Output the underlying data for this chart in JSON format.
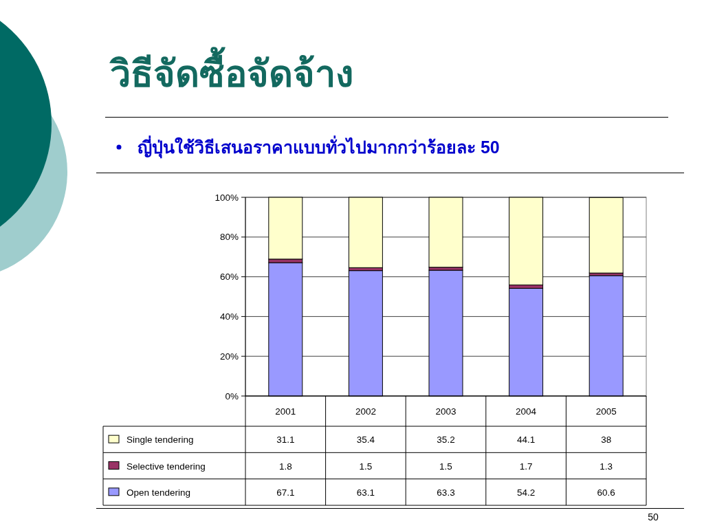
{
  "chart_data": {
    "type": "bar",
    "title": "วิธีจัดซื้อจัดจ้าง",
    "subtitle": "ญี่ปุ่นใช้วิธีเสนอราคาแบบทั่วไปมากกว่าร้อยละ 50",
    "categories": [
      "2001",
      "2002",
      "2003",
      "2004",
      "2005"
    ],
    "series": [
      {
        "name": "Open tendering",
        "color": "#9999ff",
        "values": [
          67.1,
          63.1,
          63.3,
          54.2,
          60.6
        ]
      },
      {
        "name": "Selective tendering",
        "color": "#993366",
        "values": [
          1.8,
          1.5,
          1.5,
          1.7,
          1.3
        ]
      },
      {
        "name": "Single tendering",
        "color": "#ffffcc",
        "values": [
          31.1,
          35.4,
          35.2,
          44.1,
          38
        ]
      }
    ],
    "stacked": true,
    "ylim": [
      0,
      100
    ],
    "yticks": [
      {
        "value": 0,
        "label": "0%"
      },
      {
        "value": 20,
        "label": "20%"
      },
      {
        "value": 40,
        "label": "40%"
      },
      {
        "value": 60,
        "label": "60%"
      },
      {
        "value": 80,
        "label": "80%"
      },
      {
        "value": 100,
        "label": "100%"
      }
    ],
    "grid": "y",
    "legend": "bottom",
    "data_labels": true,
    "annotations": [
      "50"
    ]
  }
}
